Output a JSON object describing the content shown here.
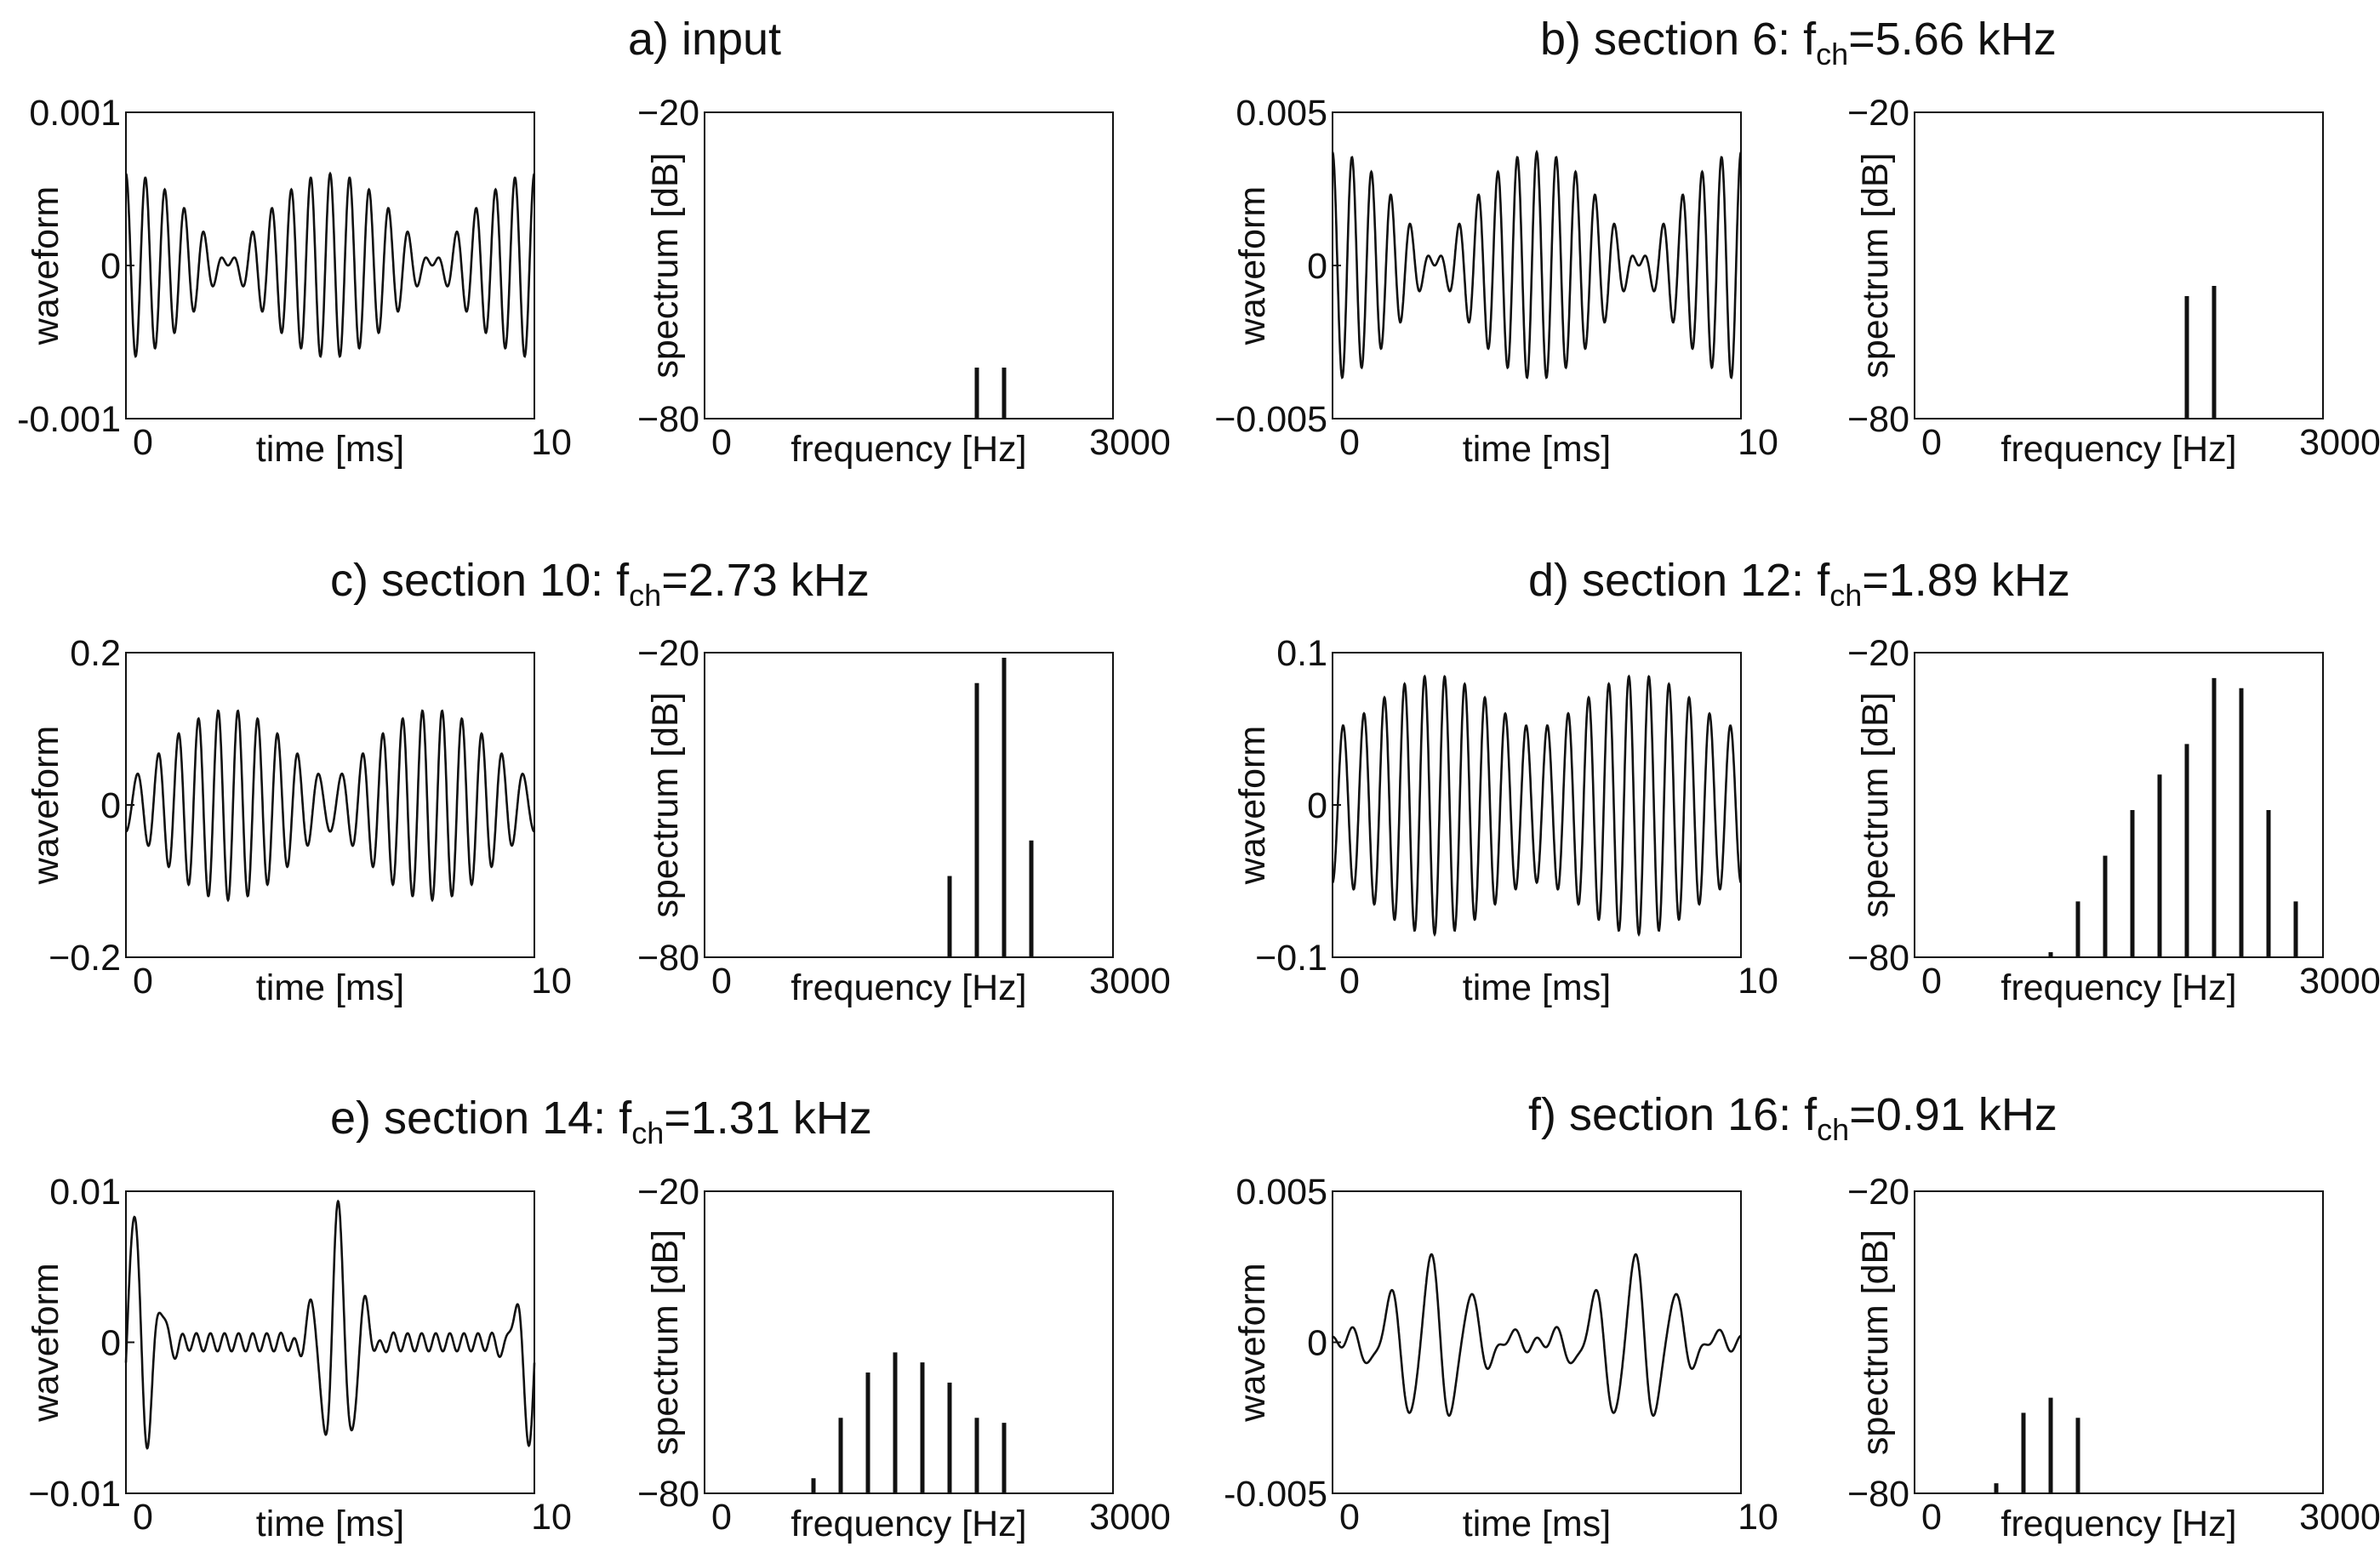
{
  "figure": {
    "wave_xlabel": "time [ms]",
    "wave_ylabel": "waveform",
    "spec_xlabel": "frequency [Hz]",
    "spec_ylabel": "spectrum [dB]"
  },
  "panels": [
    {
      "id": "a",
      "title_main": "a) input",
      "title_sub": "",
      "title_value": ""
    },
    {
      "id": "b",
      "title_main": "b) section 6:  f",
      "title_sub": "ch",
      "title_value": "=5.66 kHz"
    },
    {
      "id": "c",
      "title_main": "c) section 10:  f",
      "title_sub": "ch",
      "title_value": "=2.73 kHz"
    },
    {
      "id": "d",
      "title_main": "d) section 12:  f",
      "title_sub": "ch",
      "title_value": "=1.89 kHz"
    },
    {
      "id": "e",
      "title_main": "e) section 14:  f",
      "title_sub": "ch",
      "title_value": "=1.31 kHz"
    },
    {
      "id": "f",
      "title_main": "f) section 16:  f",
      "title_sub": "ch",
      "title_value": "=0.91 kHz"
    }
  ],
  "chart_data": [
    {
      "panel": "a",
      "kind": "waveform",
      "type": "line",
      "xlabel": "time [ms]",
      "ylabel": "waveform",
      "xlim": [
        0,
        10
      ],
      "ylim": [
        -0.001,
        0.001
      ],
      "xtick_labels": [
        "0",
        "10"
      ],
      "ytick_labels": [
        "0.001",
        "0",
        "-0.001"
      ],
      "signal": {
        "type": "two-tone",
        "freq_khz": [
          2.0,
          2.2
        ],
        "amplitudes": [
          0.0003,
          0.0003
        ],
        "phase": 0.0
      }
    },
    {
      "panel": "a",
      "kind": "spectrum",
      "type": "bar",
      "xlabel": "frequency [Hz]",
      "ylabel": "spectrum [dB]",
      "xlim": [
        0,
        3000
      ],
      "ylim": [
        -80,
        -20
      ],
      "xtick_labels": [
        "0",
        "3000"
      ],
      "ytick_labels": [
        "−20",
        "−80"
      ],
      "x": [
        2000,
        2200
      ],
      "values": [
        -70,
        -70
      ]
    },
    {
      "panel": "b",
      "kind": "waveform",
      "type": "line",
      "xlabel": "time [ms]",
      "ylabel": "waveform",
      "xlim": [
        0,
        10
      ],
      "ylim": [
        -0.005,
        0.005
      ],
      "xtick_labels": [
        "0",
        "10"
      ],
      "ytick_labels": [
        "0.005",
        "0",
        "−0.005"
      ],
      "signal": {
        "type": "two-tone",
        "freq_khz": [
          2.0,
          2.2
        ],
        "amplitudes": [
          0.00185,
          0.00185
        ],
        "phase": 0.0
      }
    },
    {
      "panel": "b",
      "kind": "spectrum",
      "type": "bar",
      "xlabel": "frequency [Hz]",
      "ylabel": "spectrum [dB]",
      "xlim": [
        0,
        3000
      ],
      "ylim": [
        -80,
        -20
      ],
      "xtick_labels": [
        "0",
        "3000"
      ],
      "ytick_labels": [
        "−20",
        "−80"
      ],
      "x": [
        2000,
        2200
      ],
      "values": [
        -56,
        -54
      ]
    },
    {
      "panel": "c",
      "kind": "waveform",
      "type": "line",
      "xlabel": "time [ms]",
      "ylabel": "waveform",
      "xlim": [
        0,
        10
      ],
      "ylim": [
        -0.2,
        0.2
      ],
      "xtick_labels": [
        "0",
        "10"
      ],
      "ytick_labels": [
        "0.2",
        "0",
        "−0.2"
      ],
      "signal": {
        "type": "two-tone",
        "freq_khz": [
          2.0,
          2.2
        ],
        "amplitudes": [
          0.08,
          0.045
        ],
        "phase": 3.14
      }
    },
    {
      "panel": "c",
      "kind": "spectrum",
      "type": "bar",
      "xlabel": "frequency [Hz]",
      "ylabel": "spectrum [dB]",
      "xlim": [
        0,
        3000
      ],
      "ylim": [
        -80,
        -20
      ],
      "xtick_labels": [
        "0",
        "3000"
      ],
      "ytick_labels": [
        "−20",
        "−80"
      ],
      "x": [
        1800,
        2000,
        2200,
        2400
      ],
      "values": [
        -64,
        -26,
        -21,
        -57
      ]
    },
    {
      "panel": "d",
      "kind": "waveform",
      "type": "line",
      "xlabel": "time [ms]",
      "ylabel": "waveform",
      "xlim": [
        0,
        10
      ],
      "ylim": [
        -0.1,
        0.1
      ],
      "xtick_labels": [
        "0",
        "10"
      ],
      "ytick_labels": [
        "0.1",
        "0",
        "−0.1"
      ],
      "signal": {
        "type": "two-tone",
        "freq_khz": [
          2.0,
          2.2
        ],
        "amplitudes": [
          0.068,
          0.017
        ],
        "phase": 3.14
      }
    },
    {
      "panel": "d",
      "kind": "spectrum",
      "type": "bar",
      "xlabel": "frequency [Hz]",
      "ylabel": "spectrum [dB]",
      "xlim": [
        0,
        3000
      ],
      "ylim": [
        -80,
        -20
      ],
      "xtick_labels": [
        "0",
        "3000"
      ],
      "ytick_labels": [
        "−20",
        "−80"
      ],
      "x": [
        1000,
        1200,
        1400,
        1600,
        1800,
        2000,
        2200,
        2400,
        2600,
        2800
      ],
      "values": [
        -79,
        -69,
        -60,
        -51,
        -44,
        -38,
        -25,
        -27,
        -51,
        -69
      ]
    },
    {
      "panel": "e",
      "kind": "waveform",
      "type": "line",
      "xlabel": "time [ms]",
      "ylabel": "waveform",
      "xlim": [
        0,
        10
      ],
      "ylim": [
        -0.01,
        0.01
      ],
      "xtick_labels": [
        "0",
        "10"
      ],
      "ytick_labels": [
        "0.01",
        "0",
        "−0.01"
      ],
      "signal": {
        "type": "pulse-train",
        "centers_ms": [
          0.2,
          5.2,
          10.2
        ],
        "amplitude": 0.0088,
        "carrier_khz": 1.45,
        "width_ms": 0.42,
        "floor": 0.0006
      }
    },
    {
      "panel": "e",
      "kind": "spectrum",
      "type": "bar",
      "xlabel": "frequency [Hz]",
      "ylabel": "spectrum [dB]",
      "xlim": [
        0,
        3000
      ],
      "ylim": [
        -80,
        -20
      ],
      "xtick_labels": [
        "0",
        "3000"
      ],
      "ytick_labels": [
        "−20",
        "−80"
      ],
      "x": [
        800,
        1000,
        1200,
        1400,
        1600,
        1800,
        2000,
        2200
      ],
      "values": [
        -77,
        -65,
        -56,
        -52,
        -54,
        -58,
        -65,
        -66
      ]
    },
    {
      "panel": "f",
      "kind": "waveform",
      "type": "line",
      "xlabel": "time [ms]",
      "ylabel": "waveform",
      "xlim": [
        0,
        10
      ],
      "ylim": [
        -0.005,
        0.005
      ],
      "xtick_labels": [
        "0",
        "10"
      ],
      "ytick_labels": [
        "0.005",
        "0",
        "-0.005"
      ],
      "signal": {
        "type": "pulse-train",
        "centers_ms": [
          2.4,
          7.4
        ],
        "amplitude": 0.0028,
        "carrier_khz": 1.0,
        "width_ms": 0.9,
        "floor": 0.00025
      }
    },
    {
      "panel": "f",
      "kind": "spectrum",
      "type": "bar",
      "xlabel": "frequency [Hz]",
      "ylabel": "spectrum [dB]",
      "xlim": [
        0,
        3000
      ],
      "ylim": [
        -80,
        -20
      ],
      "xtick_labels": [
        "0",
        "3000"
      ],
      "ytick_labels": [
        "−20",
        "−80"
      ],
      "x": [
        600,
        800,
        1000,
        1200
      ],
      "values": [
        -78,
        -64,
        -61,
        -65
      ]
    }
  ]
}
